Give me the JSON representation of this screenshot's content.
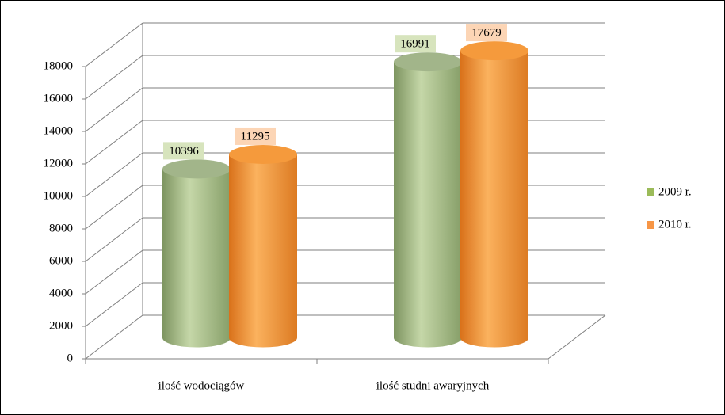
{
  "chart_data": {
    "type": "bar3d",
    "categories": [
      "ilość wodociągów",
      "ilość studni awaryjnych"
    ],
    "series": [
      {
        "name": "2009 r.",
        "color": "#9bbb59",
        "values": [
          10396,
          16991
        ]
      },
      {
        "name": "2010 r.",
        "color": "#f79646",
        "values": [
          11295,
          17679
        ]
      }
    ],
    "ylim": [
      0,
      18000
    ],
    "yticks": [
      0,
      2000,
      4000,
      6000,
      8000,
      10000,
      12000,
      14000,
      16000,
      18000
    ],
    "grid": true,
    "legend": "right"
  }
}
